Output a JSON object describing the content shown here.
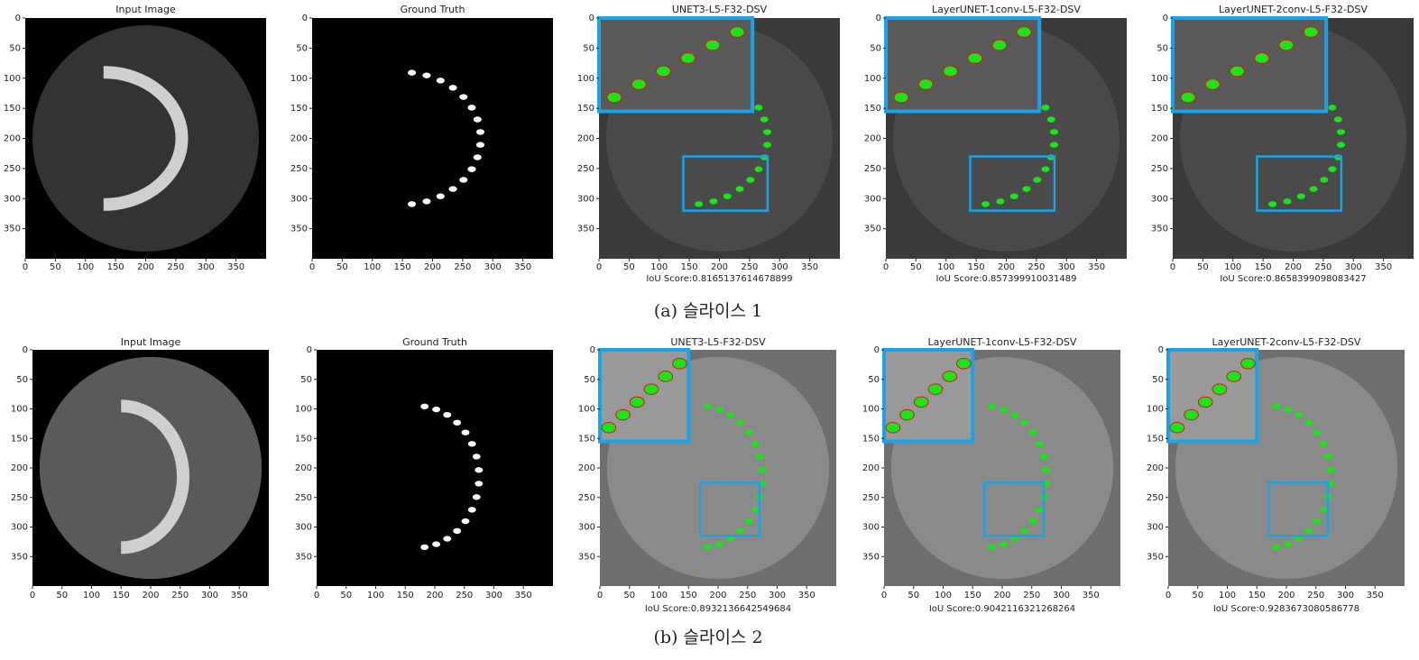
{
  "rows": [
    {
      "caption": "(a) 슬라이스 1",
      "panels": [
        {
          "title": "Input Image"
        },
        {
          "title": "Ground Truth"
        },
        {
          "title": "UNET3-L5-F32-DSV",
          "score": "IoU Score:0.8165137614678899"
        },
        {
          "title": "LayerUNET-1conv-L5-F32-DSV",
          "score": "IoU Score:0.857399910031489"
        },
        {
          "title": "LayerUNET-2conv-L5-F32-DSV",
          "score": "IoU Score:0.8658399098083427"
        }
      ]
    },
    {
      "caption": "(b) 슬라이스 2",
      "panels": [
        {
          "title": "Input Image"
        },
        {
          "title": "Ground Truth"
        },
        {
          "title": "UNET3-L5-F32-DSV",
          "score": "IoU Score:0.8932136642549684"
        },
        {
          "title": "LayerUNET-1conv-L5-F32-DSV",
          "score": "IoU Score:0.9042116321268264"
        },
        {
          "title": "LayerUNET-2conv-L5-F32-DSV",
          "score": "IoU Score:0.9283673080586778"
        }
      ]
    }
  ],
  "xlim": [
    0,
    400
  ],
  "ylim": [
    0,
    400
  ],
  "xticks": [
    0,
    50,
    100,
    150,
    200,
    250,
    300,
    350
  ],
  "yticks": [
    0,
    50,
    100,
    150,
    200,
    250,
    300,
    350
  ]
}
